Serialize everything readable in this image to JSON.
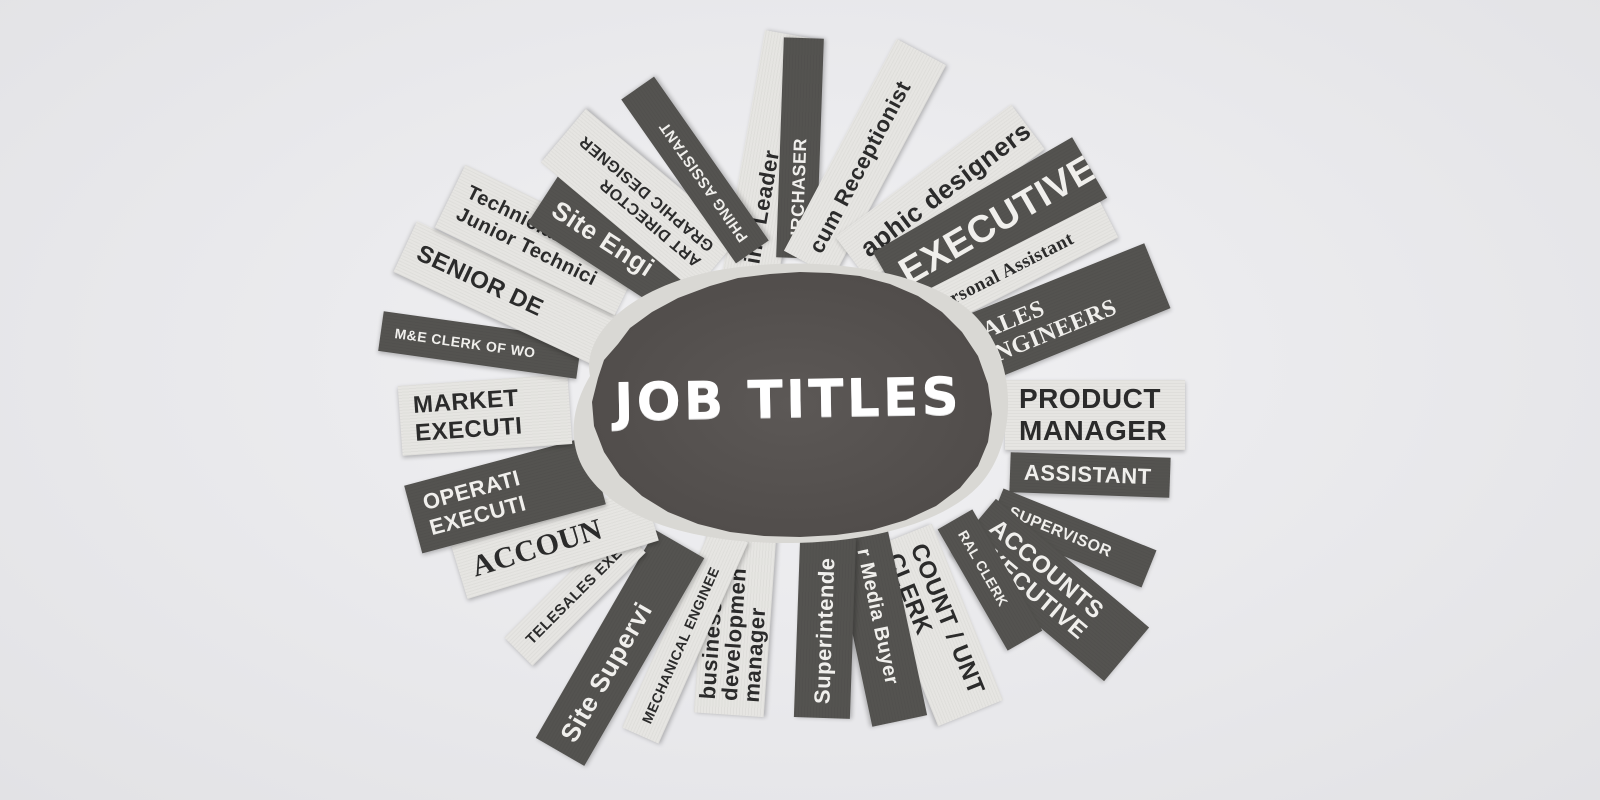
{
  "title": "JOB TITLES",
  "colors": {
    "background": "#e8e8eb",
    "paper_light": "#e6e5e2",
    "paper_dark": "#545350",
    "blob": "#5a5654",
    "title_text": "#ffffff"
  },
  "clippings": [
    {
      "text": "Line Leader"
    },
    {
      "text": "URCHASER"
    },
    {
      "text": "cum Receptionist"
    },
    {
      "text": "aphic designers"
    },
    {
      "text": "EXECUTIVES"
    },
    {
      "text": "ersonal Assistant"
    },
    {
      "text": "SALES ENGINEERS"
    },
    {
      "text": "PRODUCT MANAGER"
    },
    {
      "text": "ASSISTANT"
    },
    {
      "text": "SUPERVISOR"
    },
    {
      "text": "ACCOUNTS EXECUTIVE"
    },
    {
      "text": "RAL CLERK"
    },
    {
      "text": "COUNT / UNT CLERK"
    },
    {
      "text": "r Media Buyer"
    },
    {
      "text": "Superintende"
    },
    {
      "text": "business developmen manager"
    },
    {
      "text": "MECHANICAL ENGINEE"
    },
    {
      "text": "Site Supervi"
    },
    {
      "text": "TELESALES EXE"
    },
    {
      "text": "ACCOUN"
    },
    {
      "text": "OPERATI EXECUTI"
    },
    {
      "text": "MARKET EXECUTI"
    },
    {
      "text": "M&E CLERK OF WO"
    },
    {
      "text": "SENIOR DE"
    },
    {
      "text": "Technician O Junior Technici"
    },
    {
      "text": "Site Engi"
    },
    {
      "text": "ART DIRECTOR GRAPHIC DESIGNER"
    },
    {
      "text": "PHING ASSISTANT"
    }
  ]
}
